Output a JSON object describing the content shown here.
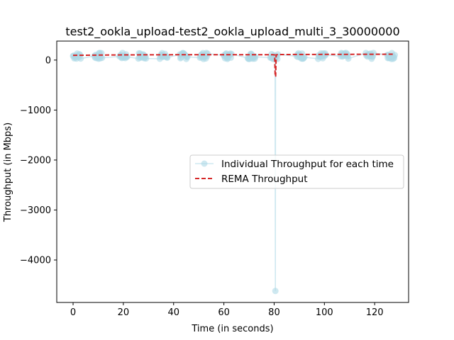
{
  "chart_data": {
    "type": "line",
    "title": "test2_ookla_upload-test2_ookla_upload_multi_3_30000000",
    "xlabel": "Time (in seconds)",
    "ylabel": "Throughput (in Mbps)",
    "xlim": [
      -6.5,
      133.5
    ],
    "ylim": [
      -4850,
      380
    ],
    "x_ticks": [
      0,
      20,
      40,
      60,
      80,
      100,
      120
    ],
    "y_ticks": [
      0,
      -1000,
      -2000,
      -3000,
      -4000
    ],
    "grid": false,
    "legend_position": "center-right",
    "colors": {
      "individual": "#add8e6",
      "rema": "#d62728"
    },
    "series": [
      {
        "name": "Individual Throughput for each time",
        "style": "line-with-markers",
        "clusters": [
          [
            0,
            3
          ],
          [
            8.5,
            11.5
          ],
          [
            18.5,
            21.5
          ],
          [
            26,
            29
          ],
          [
            34.5,
            37.5
          ],
          [
            42.5,
            45.5
          ],
          [
            50.5,
            53.5
          ],
          [
            60,
            63
          ],
          [
            69.5,
            72.5
          ],
          [
            78.5,
            81.5
          ],
          [
            89,
            92
          ],
          [
            97.5,
            100.5
          ],
          [
            106.5,
            109.5
          ],
          [
            116.5,
            119.5
          ],
          [
            125,
            128
          ]
        ],
        "typical_range": [
          20,
          145
        ],
        "outlier": {
          "x": 80.5,
          "y": -4620
        }
      },
      {
        "name": "REMA Throughput",
        "style": "dashed-line",
        "points": [
          [
            0,
            95
          ],
          [
            10,
            100
          ],
          [
            20,
            103
          ],
          [
            30,
            105
          ],
          [
            40,
            107
          ],
          [
            50,
            108
          ],
          [
            60,
            108
          ],
          [
            70,
            107
          ],
          [
            79.5,
            107
          ],
          [
            80.2,
            102
          ],
          [
            80.4,
            -330
          ],
          [
            80.6,
            -320
          ],
          [
            80.8,
            102
          ],
          [
            81.5,
            110
          ],
          [
            90,
            112
          ],
          [
            100,
            113
          ],
          [
            110,
            115
          ],
          [
            120,
            117
          ],
          [
            128,
            118
          ]
        ]
      }
    ]
  }
}
